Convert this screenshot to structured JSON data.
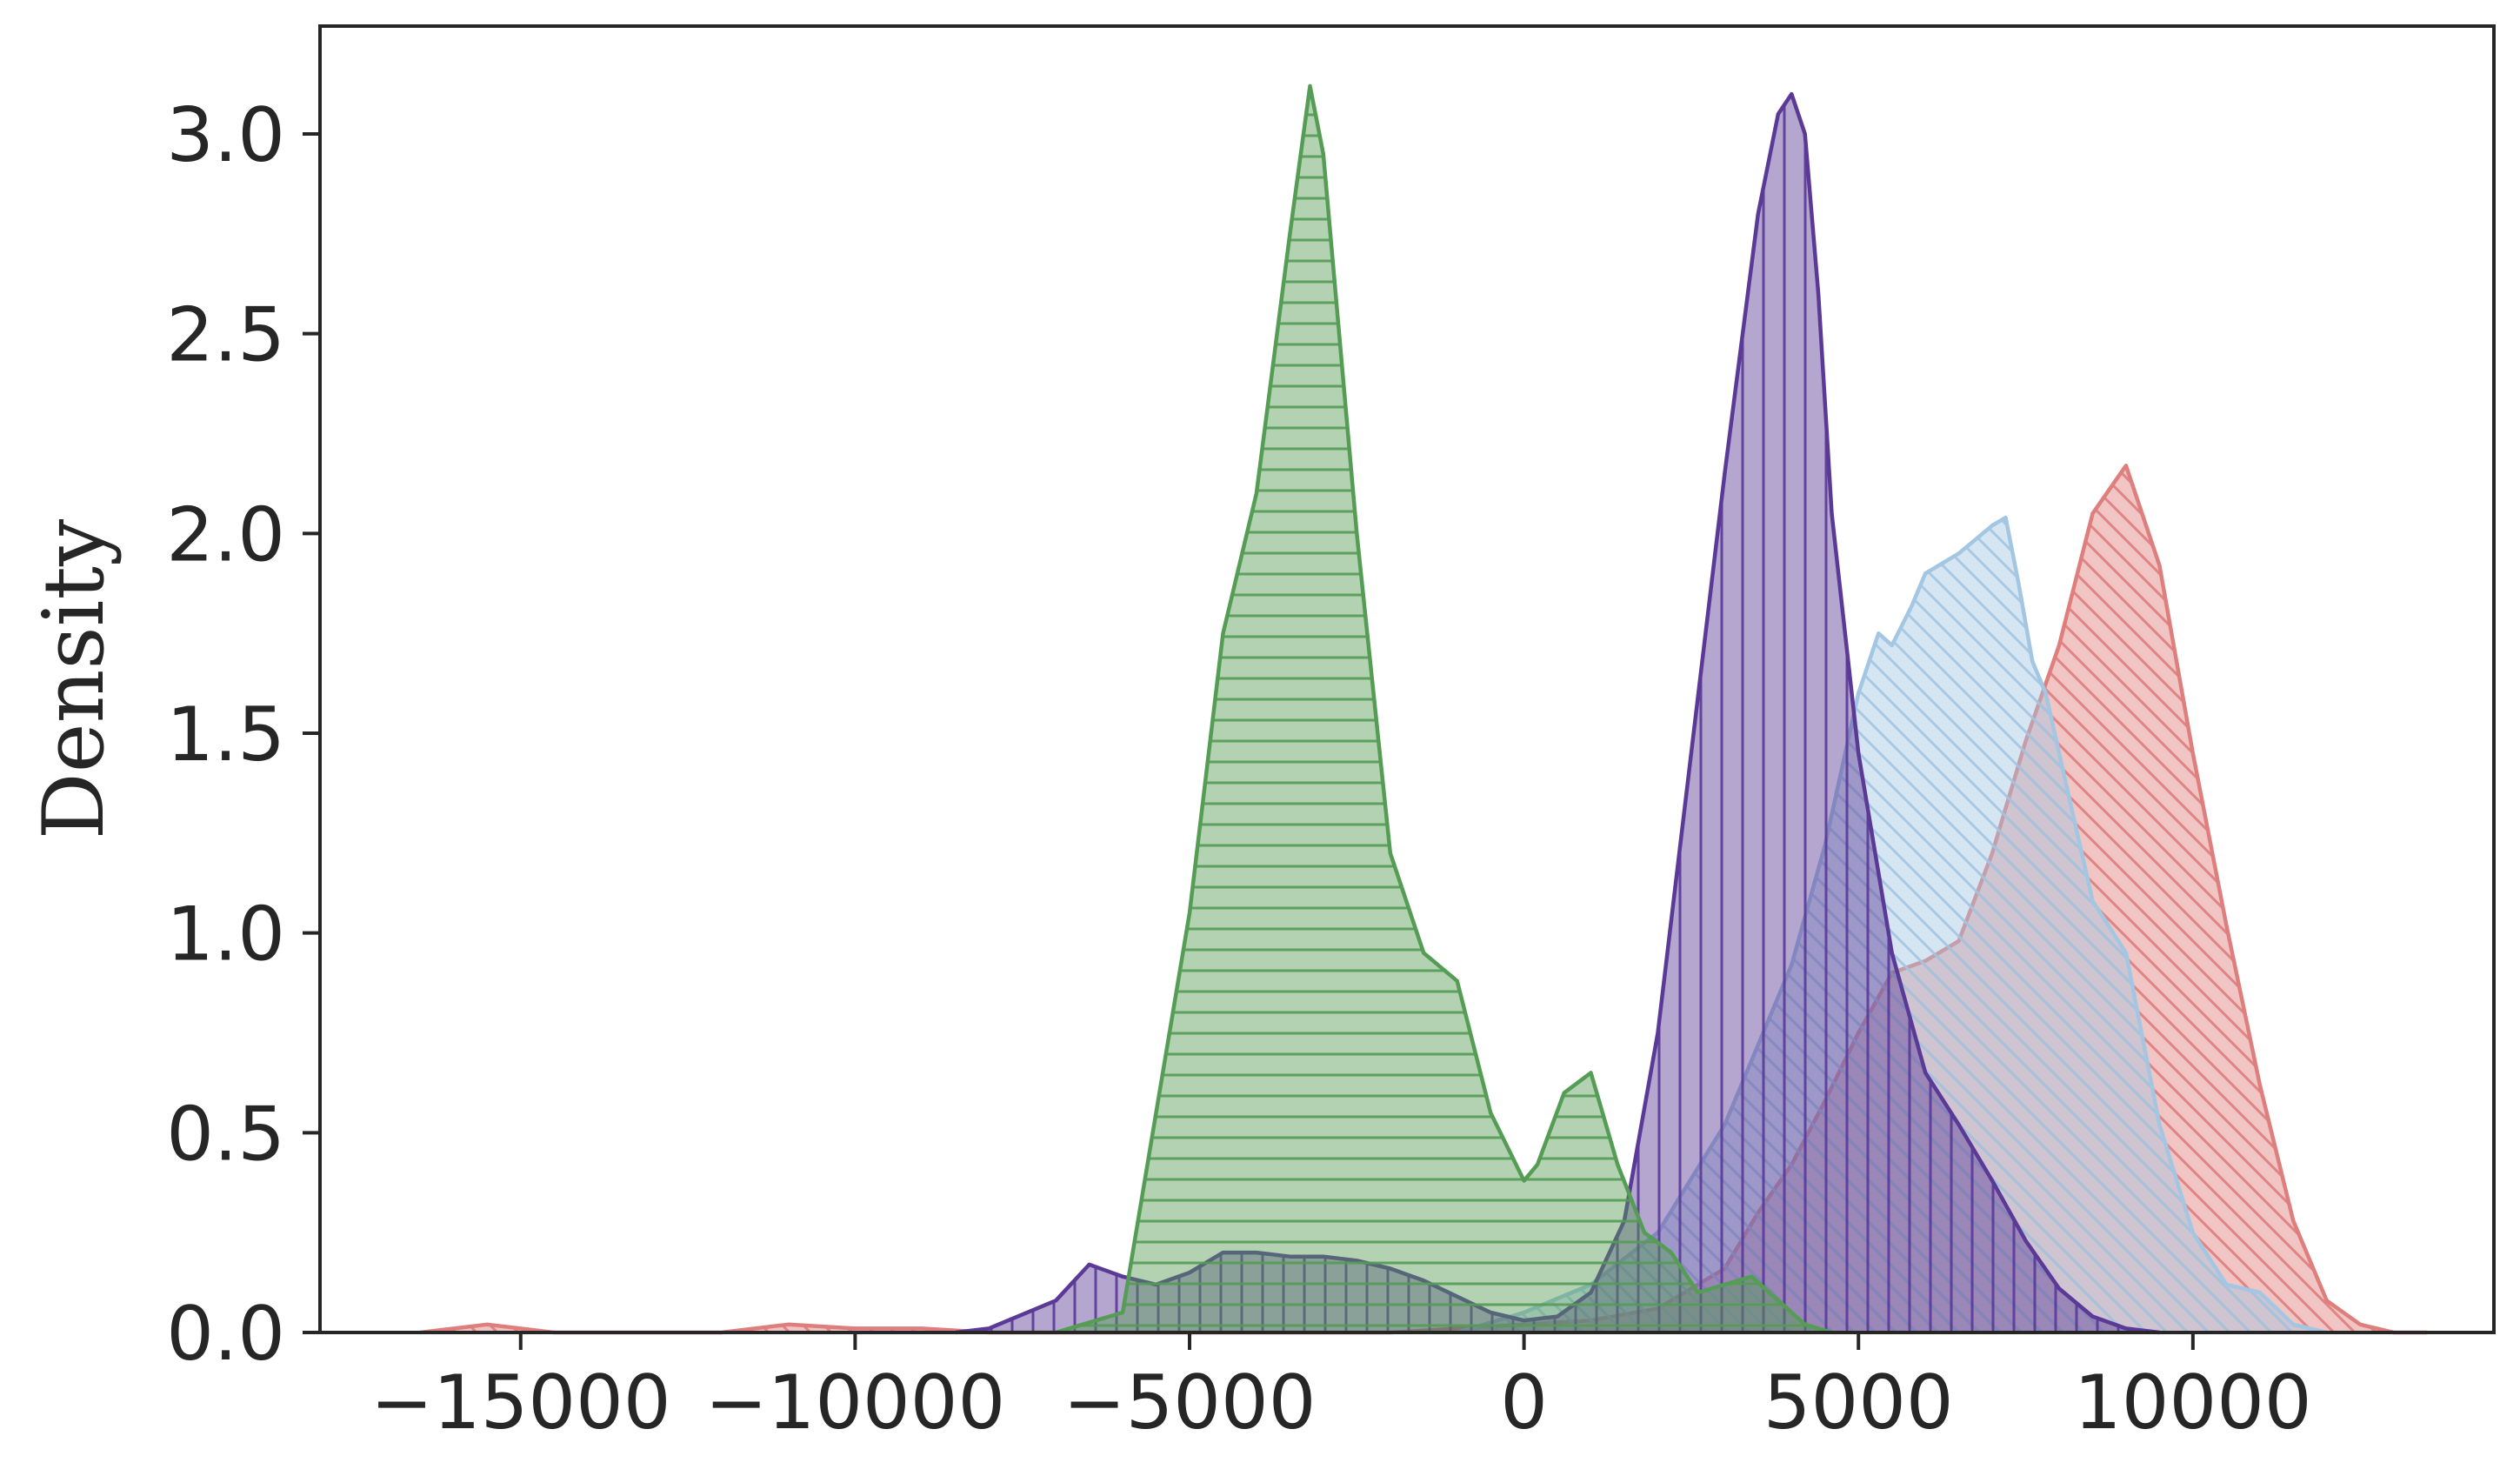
{
  "chart_data": {
    "type": "area",
    "title": "",
    "xlabel": "",
    "ylabel": "Density",
    "xlim": [
      -18000,
      14500
    ],
    "ylim": [
      0,
      3.27
    ],
    "x_ticks": [
      -15000,
      -10000,
      -5000,
      0,
      5000,
      10000
    ],
    "x_tick_labels": [
      "−15000",
      "−10000",
      "−5000",
      "0",
      "5000",
      "10000"
    ],
    "y_ticks": [
      0.0,
      0.5,
      1.0,
      1.5,
      2.0,
      2.5,
      3.0
    ],
    "y_tick_labels": [
      "0.0",
      "0.5",
      "1.0",
      "1.5",
      "2.0",
      "2.5",
      "3.0"
    ],
    "grid": false,
    "legend": "none",
    "series": [
      {
        "color": "#de7e7d",
        "hatch": "diagonal-backslash",
        "x": [
          -16500,
          -15500,
          -14500,
          -12000,
          -11000,
          -10000,
          -9000,
          -8000,
          -5000,
          -2000,
          0,
          1000,
          2000,
          3000,
          3500,
          4000,
          4500,
          5000,
          5500,
          6000,
          6500,
          7000,
          7500,
          8000,
          8500,
          9000,
          9500,
          10000,
          10500,
          11000,
          11500,
          12000,
          12500,
          13000,
          13500
        ],
        "y": [
          0.0,
          0.02,
          0.0,
          0.0,
          0.02,
          0.01,
          0.01,
          0.0,
          0.0,
          0.0,
          0.02,
          0.03,
          0.06,
          0.16,
          0.3,
          0.42,
          0.58,
          0.75,
          0.9,
          0.93,
          0.98,
          1.2,
          1.48,
          1.72,
          2.05,
          2.17,
          1.92,
          1.45,
          1.02,
          0.62,
          0.28,
          0.08,
          0.02,
          0.0,
          0.0
        ]
      },
      {
        "color": "#a3c6e2",
        "hatch": "diagonal-backslash",
        "x": [
          -1000,
          0,
          1000,
          2000,
          3000,
          4000,
          4500,
          5000,
          5300,
          5500,
          5800,
          6000,
          6500,
          7000,
          7200,
          7400,
          7600,
          7800,
          8000,
          8500,
          9000,
          9500,
          10000,
          10500,
          11000,
          11500,
          12000
        ],
        "y": [
          0.0,
          0.05,
          0.12,
          0.25,
          0.52,
          0.92,
          1.22,
          1.6,
          1.75,
          1.72,
          1.82,
          1.9,
          1.95,
          2.02,
          2.04,
          1.87,
          1.68,
          1.6,
          1.45,
          1.08,
          0.95,
          0.52,
          0.25,
          0.12,
          0.1,
          0.02,
          0.0
        ]
      },
      {
        "color": "#5a3a96",
        "hatch": "vertical",
        "x": [
          -8500,
          -8000,
          -7000,
          -6500,
          -6000,
          -5500,
          -5000,
          -4500,
          -4000,
          -3500,
          -3000,
          -2500,
          -2000,
          -1500,
          -1000,
          -500,
          0,
          500,
          1000,
          1500,
          2000,
          2500,
          3000,
          3500,
          3800,
          4000,
          4200,
          4400,
          4600,
          5000,
          5500,
          6000,
          6500,
          7000,
          7500,
          8000,
          8500,
          9000,
          9500
        ],
        "y": [
          0.0,
          0.01,
          0.08,
          0.17,
          0.14,
          0.12,
          0.15,
          0.2,
          0.2,
          0.19,
          0.19,
          0.18,
          0.16,
          0.13,
          0.09,
          0.05,
          0.03,
          0.04,
          0.1,
          0.28,
          0.75,
          1.45,
          2.15,
          2.8,
          3.05,
          3.1,
          3.0,
          2.6,
          2.05,
          1.45,
          0.95,
          0.65,
          0.52,
          0.38,
          0.23,
          0.11,
          0.04,
          0.01,
          0.0
        ]
      },
      {
        "color": "#559c55",
        "hatch": "horizontal",
        "x": [
          -7000,
          -6000,
          -5500,
          -5000,
          -4500,
          -4000,
          -3500,
          -3200,
          -3000,
          -2500,
          -2000,
          -1500,
          -1000,
          -500,
          0,
          200,
          600,
          1000,
          1400,
          1800,
          2200,
          2600,
          3000,
          3400,
          3800,
          4200,
          4600
        ],
        "y": [
          0.0,
          0.05,
          0.55,
          1.05,
          1.75,
          2.1,
          2.75,
          3.12,
          2.95,
          2.0,
          1.2,
          0.95,
          0.88,
          0.55,
          0.38,
          0.42,
          0.6,
          0.65,
          0.42,
          0.25,
          0.2,
          0.1,
          0.12,
          0.14,
          0.08,
          0.02,
          0.0
        ]
      }
    ]
  }
}
